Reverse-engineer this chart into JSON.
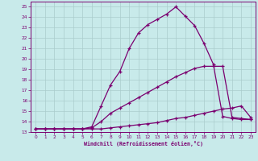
{
  "xlabel": "Windchill (Refroidissement éolien,°C)",
  "bg_color": "#c8eaea",
  "grid_color": "#aacccc",
  "line_color": "#7b0070",
  "xlim": [
    -0.5,
    23.5
  ],
  "ylim": [
    13,
    25.5
  ],
  "xticks": [
    0,
    1,
    2,
    3,
    4,
    5,
    6,
    7,
    8,
    9,
    10,
    11,
    12,
    13,
    14,
    15,
    16,
    17,
    18,
    19,
    20,
    21,
    22,
    23
  ],
  "yticks": [
    13,
    14,
    15,
    16,
    17,
    18,
    19,
    20,
    21,
    22,
    23,
    24,
    25
  ],
  "line1_x": [
    0,
    1,
    2,
    3,
    4,
    5,
    6,
    7,
    8,
    9,
    10,
    11,
    12,
    13,
    14,
    15,
    16,
    17,
    18,
    19,
    20,
    21,
    22,
    23
  ],
  "line1_y": [
    13.3,
    13.3,
    13.3,
    13.3,
    13.3,
    13.3,
    13.3,
    13.3,
    13.4,
    13.5,
    13.6,
    13.7,
    13.8,
    13.9,
    14.1,
    14.3,
    14.4,
    14.6,
    14.8,
    15.0,
    15.2,
    15.3,
    15.5,
    14.4
  ],
  "line2_x": [
    0,
    1,
    2,
    3,
    4,
    5,
    6,
    7,
    8,
    9,
    10,
    11,
    12,
    13,
    14,
    15,
    16,
    17,
    18,
    19,
    20,
    21,
    22,
    23
  ],
  "line2_y": [
    13.3,
    13.3,
    13.3,
    13.3,
    13.3,
    13.3,
    13.4,
    14.0,
    14.8,
    15.3,
    15.8,
    16.3,
    16.8,
    17.3,
    17.8,
    18.3,
    18.7,
    19.1,
    19.3,
    19.3,
    19.3,
    14.4,
    14.3,
    14.2
  ],
  "line3_x": [
    0,
    1,
    2,
    3,
    4,
    5,
    6,
    7,
    8,
    9,
    10,
    11,
    12,
    13,
    14,
    15,
    16,
    17,
    18,
    19,
    20,
    21,
    22,
    23
  ],
  "line3_y": [
    13.3,
    13.3,
    13.3,
    13.3,
    13.3,
    13.3,
    13.5,
    15.5,
    17.5,
    18.8,
    21.0,
    22.5,
    23.3,
    23.8,
    24.3,
    25.0,
    24.1,
    23.2,
    21.5,
    19.5,
    14.5,
    14.3,
    14.2,
    14.2
  ]
}
